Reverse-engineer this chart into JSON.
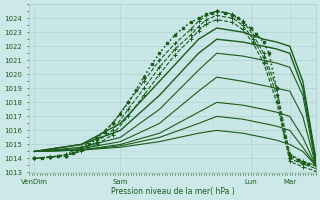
{
  "xlabel": "Pression niveau de la mer( hPa )",
  "background_color": "#cce8e8",
  "grid_major_color": "#aacccc",
  "grid_minor_color": "#bbdddd",
  "line_color": "#1a5c1a",
  "ylim": [
    1013,
    1025
  ],
  "xlim": [
    0,
    110
  ],
  "yticks": [
    1013,
    1014,
    1015,
    1016,
    1017,
    1018,
    1019,
    1020,
    1021,
    1022,
    1023,
    1024
  ],
  "xtick_positions": [
    2,
    35,
    85,
    100
  ],
  "xtick_labels": [
    "VenDim",
    "Sam",
    "Lun",
    "Mar"
  ],
  "lines": [
    {
      "x": [
        2,
        8,
        14,
        20,
        26,
        32,
        38,
        44,
        50,
        56,
        62,
        65,
        68,
        72,
        78,
        82,
        86,
        90,
        95,
        100,
        105,
        110
      ],
      "y": [
        1014.0,
        1014.1,
        1014.3,
        1014.8,
        1015.5,
        1016.5,
        1018.0,
        1019.5,
        1021.0,
        1022.2,
        1023.2,
        1023.8,
        1024.2,
        1024.5,
        1024.3,
        1023.8,
        1022.8,
        1021.5,
        1019.0,
        1014.3,
        1013.8,
        1013.5
      ],
      "style": "dotted_marker",
      "lw": 0.8,
      "marker": "+"
    },
    {
      "x": [
        2,
        8,
        14,
        20,
        26,
        32,
        38,
        44,
        50,
        56,
        62,
        65,
        68,
        72,
        78,
        82,
        86,
        90,
        95,
        100,
        105,
        110
      ],
      "y": [
        1014.0,
        1014.1,
        1014.2,
        1014.6,
        1015.2,
        1016.0,
        1017.5,
        1019.0,
        1020.5,
        1021.8,
        1022.8,
        1023.4,
        1023.9,
        1024.2,
        1024.0,
        1023.5,
        1022.5,
        1021.2,
        1018.5,
        1014.0,
        1013.6,
        1013.3
      ],
      "style": "dotted_marker",
      "lw": 0.8,
      "marker": "+"
    },
    {
      "x": [
        2,
        8,
        14,
        20,
        26,
        32,
        38,
        44,
        50,
        56,
        62,
        65,
        68,
        72,
        78,
        82,
        86,
        90,
        95,
        100,
        105,
        110
      ],
      "y": [
        1014.0,
        1014.1,
        1014.2,
        1014.5,
        1015.0,
        1015.7,
        1017.0,
        1018.5,
        1020.0,
        1021.4,
        1022.5,
        1023.1,
        1023.6,
        1023.9,
        1023.7,
        1023.2,
        1022.2,
        1020.8,
        1018.0,
        1013.8,
        1013.4,
        1013.1
      ],
      "style": "dotted_marker",
      "lw": 0.8,
      "marker": "+"
    },
    {
      "x": [
        2,
        20,
        35,
        50,
        65,
        72,
        82,
        90,
        95,
        100,
        105,
        110
      ],
      "y": [
        1014.5,
        1015.0,
        1016.5,
        1019.5,
        1022.5,
        1023.3,
        1023.0,
        1022.5,
        1022.3,
        1022.0,
        1019.5,
        1014.0
      ],
      "style": "solid",
      "lw": 1.0
    },
    {
      "x": [
        2,
        20,
        35,
        50,
        65,
        72,
        82,
        90,
        95,
        100,
        105,
        110
      ],
      "y": [
        1014.5,
        1015.0,
        1016.0,
        1018.5,
        1021.5,
        1022.5,
        1022.3,
        1022.0,
        1021.8,
        1021.5,
        1019.0,
        1013.8
      ],
      "style": "solid",
      "lw": 1.0
    },
    {
      "x": [
        2,
        20,
        35,
        50,
        65,
        72,
        82,
        90,
        95,
        100,
        105,
        110
      ],
      "y": [
        1014.5,
        1014.8,
        1015.5,
        1017.5,
        1020.3,
        1021.5,
        1021.3,
        1021.0,
        1020.8,
        1020.5,
        1018.5,
        1013.5
      ],
      "style": "solid",
      "lw": 0.8
    },
    {
      "x": [
        2,
        20,
        35,
        50,
        65,
        72,
        82,
        90,
        95,
        100,
        105,
        110
      ],
      "y": [
        1014.5,
        1014.7,
        1015.2,
        1016.5,
        1018.8,
        1019.8,
        1019.5,
        1019.2,
        1019.0,
        1018.8,
        1017.0,
        1013.5
      ],
      "style": "solid",
      "lw": 0.8
    },
    {
      "x": [
        2,
        20,
        35,
        50,
        65,
        72,
        82,
        90,
        95,
        100,
        105,
        110
      ],
      "y": [
        1014.5,
        1014.6,
        1015.0,
        1015.8,
        1017.3,
        1018.0,
        1017.8,
        1017.5,
        1017.3,
        1017.0,
        1015.5,
        1013.5
      ],
      "style": "solid",
      "lw": 0.8
    },
    {
      "x": [
        2,
        20,
        35,
        50,
        65,
        72,
        82,
        90,
        95,
        100,
        105,
        110
      ],
      "y": [
        1014.5,
        1014.6,
        1014.9,
        1015.5,
        1016.5,
        1017.0,
        1016.8,
        1016.5,
        1016.3,
        1016.0,
        1014.8,
        1013.5
      ],
      "style": "solid",
      "lw": 0.8
    },
    {
      "x": [
        2,
        20,
        35,
        50,
        65,
        72,
        82,
        90,
        95,
        100,
        105,
        110
      ],
      "y": [
        1014.5,
        1014.6,
        1014.8,
        1015.2,
        1015.8,
        1016.0,
        1015.8,
        1015.5,
        1015.3,
        1015.0,
        1014.5,
        1013.5
      ],
      "style": "solid",
      "lw": 0.8
    }
  ],
  "marker_line": {
    "x": [
      2,
      5,
      8,
      11,
      14,
      17,
      20,
      23,
      26,
      29,
      32,
      35,
      38,
      41,
      44,
      47,
      50,
      53,
      56,
      59,
      62,
      65,
      68,
      70,
      72,
      75,
      78,
      80,
      82,
      85,
      87,
      90,
      92,
      95,
      98,
      100,
      103,
      105,
      107,
      110
    ],
    "y": [
      1014.0,
      1014.05,
      1014.1,
      1014.15,
      1014.2,
      1014.4,
      1014.7,
      1015.0,
      1015.4,
      1015.9,
      1016.5,
      1017.2,
      1018.0,
      1018.9,
      1019.8,
      1020.7,
      1021.5,
      1022.2,
      1022.8,
      1023.3,
      1023.7,
      1024.0,
      1024.3,
      1024.4,
      1024.5,
      1024.4,
      1024.2,
      1024.0,
      1023.7,
      1023.3,
      1022.9,
      1022.3,
      1021.5,
      1019.0,
      1015.5,
      1014.2,
      1013.9,
      1013.7,
      1013.6,
      1013.5
    ],
    "lw": 1.2
  }
}
